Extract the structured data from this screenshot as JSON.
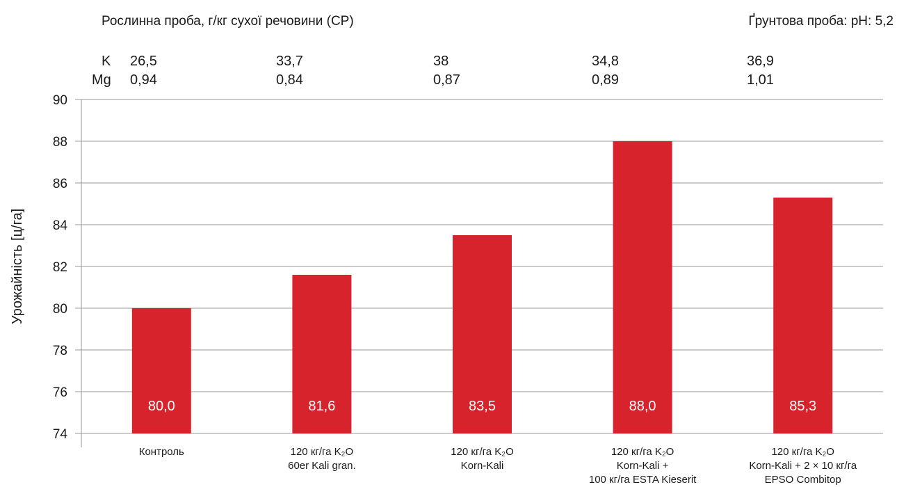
{
  "header": {
    "plant_title": "Рослинна проба, г/кг сухої речовини (СР)",
    "soil_title": "Ґрунтова проба: pH: 5,2"
  },
  "table": {
    "k_label": "K",
    "mg_label": "Mg",
    "k_values": [
      "26,5",
      "33,7",
      "38",
      "34,8",
      "36,9"
    ],
    "mg_values": [
      "0,94",
      "0,84",
      "0,87",
      "0,89",
      "1,01"
    ]
  },
  "colors": {
    "bar": "#d6232c"
  },
  "chart_data": {
    "type": "bar",
    "ylabel": "Урожайність [ц/га]",
    "xlabel": "",
    "ylim": [
      74,
      90
    ],
    "yticks": [
      74,
      76,
      78,
      80,
      82,
      84,
      86,
      88,
      90
    ],
    "grid": true,
    "categories": [
      [
        "Контроль"
      ],
      [
        "120 кг/га K₂O",
        "60er Kali gran."
      ],
      [
        "120 кг/га K₂O",
        "Korn-Kali"
      ],
      [
        "120 кг/га K₂O",
        "Korn-Kali +",
        "100 кг/га ESTA Kieserit"
      ],
      [
        "120 кг/га K₂O",
        "Korn-Kali + 2 × 10 кг/га",
        "EPSO Combitop"
      ]
    ],
    "values": [
      80.0,
      81.6,
      83.5,
      88.0,
      85.3
    ],
    "value_labels": [
      "80,0",
      "81,6",
      "83,5",
      "88,0",
      "85,3"
    ]
  }
}
